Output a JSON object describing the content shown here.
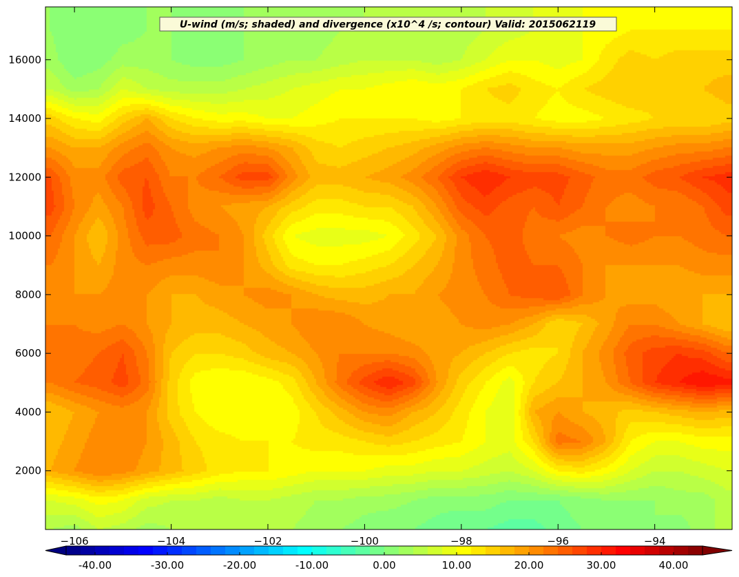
{
  "chart_data": {
    "type": "heatmap",
    "subtype": "filled-contour",
    "title": "U-wind (m/s; shaded) and divergence (x10^4 /s; contour) Valid: 2015062119",
    "xlabel": "",
    "ylabel": "",
    "xlim": [
      -106.6,
      -92.4
    ],
    "ylim": [
      0,
      17800
    ],
    "x_ticks": [
      -106,
      -104,
      -102,
      -100,
      -98,
      -96,
      -94
    ],
    "y_ticks": [
      2000,
      4000,
      6000,
      8000,
      10000,
      12000,
      14000,
      16000
    ],
    "x_tick_labels": [
      "−106",
      "−104",
      "−102",
      "−100",
      "−98",
      "−96",
      "−94"
    ],
    "y_tick_labels": [
      "2000",
      "4000",
      "6000",
      "8000",
      "10000",
      "12000",
      "14000",
      "16000"
    ],
    "grid": false,
    "colorbar": {
      "orientation": "horizontal",
      "position": "bottom",
      "min": -44,
      "max": 44,
      "step": 2,
      "extend": "both",
      "colormap": "jet",
      "ticks": [
        -40,
        -30,
        -20,
        -10,
        0,
        10,
        20,
        30,
        40
      ],
      "tick_labels": [
        "-40.00",
        "-30.00",
        "-20.00",
        "-10.00",
        "0.00",
        "10.00",
        "20.00",
        "30.00",
        "40.00"
      ]
    },
    "x": [
      -106.5,
      -106,
      -105.5,
      -105,
      -104.5,
      -104,
      -103.5,
      -103,
      -102.5,
      -102,
      -101.5,
      -101,
      -100.5,
      -100,
      -99.5,
      -99,
      -98.5,
      -98,
      -97.5,
      -97,
      -96.5,
      -96,
      -95.5,
      -95,
      -94.5,
      -94,
      -93.5,
      -93,
      -92.5
    ],
    "y": [
      0,
      1000,
      2000,
      3000,
      4000,
      5000,
      6000,
      7000,
      8000,
      9000,
      10000,
      11000,
      12000,
      13000,
      14000,
      15000,
      16000,
      17000,
      17800
    ],
    "values": [
      [
        4,
        3,
        6,
        5,
        3,
        4,
        4,
        5,
        6,
        5,
        4,
        3,
        2,
        1,
        0,
        0,
        -1,
        -2,
        -2,
        -3,
        -3,
        -1,
        0,
        1,
        1,
        2,
        1,
        3,
        5
      ],
      [
        8,
        9,
        11,
        10,
        7,
        6,
        6,
        5,
        6,
        6,
        5,
        4,
        4,
        3,
        3,
        2,
        1,
        1,
        1,
        0,
        0,
        0,
        1,
        2,
        2,
        2,
        3,
        3,
        5
      ],
      [
        18,
        20,
        22,
        21,
        19,
        17,
        15,
        13,
        12,
        12,
        11,
        10,
        10,
        10,
        9,
        9,
        8,
        8,
        7,
        6,
        8,
        12,
        13,
        11,
        8,
        6,
        6,
        7,
        8
      ],
      [
        17,
        19,
        21,
        22,
        20,
        17,
        14,
        13,
        12,
        12,
        12,
        13,
        13,
        14,
        15,
        14,
        13,
        12,
        10,
        9,
        14,
        23,
        22,
        18,
        12,
        10,
        10,
        11,
        11
      ],
      [
        16,
        18,
        20,
        21,
        20,
        15,
        12,
        10,
        10,
        10,
        11,
        14,
        17,
        20,
        21,
        18,
        16,
        13,
        10,
        8,
        18,
        20,
        18,
        17,
        15,
        16,
        17,
        18,
        17
      ],
      [
        22,
        24,
        25,
        27,
        23,
        15,
        11,
        10,
        10,
        11,
        13,
        18,
        23,
        27,
        30,
        27,
        20,
        15,
        12,
        9,
        14,
        16,
        18,
        20,
        24,
        28,
        30,
        32,
        31
      ],
      [
        24,
        23,
        24,
        26,
        22,
        16,
        14,
        14,
        15,
        17,
        18,
        20,
        22,
        22,
        22,
        21,
        19,
        18,
        16,
        14,
        13,
        14,
        18,
        21,
        25,
        27,
        28,
        27,
        24
      ],
      [
        22,
        22,
        21,
        22,
        20,
        18,
        17,
        17,
        18,
        19,
        20,
        22,
        22,
        20,
        19,
        18,
        19,
        20,
        21,
        20,
        18,
        14,
        16,
        19,
        22,
        22,
        20,
        18,
        16
      ],
      [
        20,
        20,
        20,
        21,
        20,
        18,
        18,
        19,
        20,
        21,
        20,
        18,
        17,
        17,
        18,
        18,
        20,
        21,
        22,
        24,
        25,
        26,
        22,
        20,
        19,
        19,
        18,
        18,
        18
      ],
      [
        22,
        20,
        18,
        21,
        22,
        21,
        21,
        22,
        20,
        17,
        13,
        12,
        12,
        13,
        14,
        16,
        18,
        21,
        23,
        25,
        24,
        24,
        22,
        20,
        20,
        20,
        20,
        21,
        21
      ],
      [
        24,
        20,
        16,
        21,
        25,
        25,
        23,
        22,
        20,
        15,
        10,
        9,
        9,
        9,
        10,
        13,
        16,
        21,
        24,
        25,
        23,
        22,
        21,
        22,
        23,
        22,
        22,
        23,
        24
      ],
      [
        27,
        22,
        19,
        22,
        27,
        24,
        21,
        20,
        19,
        18,
        15,
        13,
        13,
        14,
        14,
        16,
        20,
        25,
        27,
        25,
        24,
        26,
        24,
        22,
        21,
        22,
        22,
        24,
        27
      ],
      [
        26,
        21,
        21,
        25,
        26,
        22,
        22,
        24,
        27,
        27,
        21,
        17,
        17,
        18,
        19,
        21,
        24,
        28,
        30,
        28,
        27,
        27,
        25,
        23,
        23,
        25,
        26,
        28,
        29
      ],
      [
        20,
        18,
        18,
        21,
        23,
        20,
        19,
        20,
        21,
        20,
        18,
        15,
        14,
        15,
        16,
        17,
        19,
        21,
        22,
        21,
        20,
        20,
        19,
        19,
        19,
        20,
        21,
        21,
        22
      ],
      [
        15,
        12,
        11,
        15,
        18,
        14,
        12,
        11,
        11,
        10,
        10,
        11,
        12,
        12,
        12,
        12,
        11,
        12,
        13,
        13,
        12,
        11,
        11,
        12,
        13,
        14,
        14,
        14,
        15
      ],
      [
        6,
        3,
        4,
        8,
        6,
        5,
        5,
        5,
        6,
        7,
        8,
        9,
        10,
        10,
        11,
        12,
        11,
        12,
        14,
        15,
        13,
        12,
        14,
        15,
        16,
        15,
        15,
        16,
        17
      ],
      [
        3,
        0,
        1,
        3,
        3,
        2,
        1,
        1,
        2,
        3,
        4,
        4,
        5,
        6,
        6,
        6,
        5,
        6,
        8,
        10,
        10,
        9,
        10,
        13,
        15,
        14,
        15,
        15,
        15
      ],
      [
        2,
        0,
        0,
        1,
        2,
        2,
        1,
        1,
        2,
        2,
        3,
        3,
        4,
        4,
        4,
        4,
        4,
        5,
        6,
        7,
        8,
        9,
        10,
        11,
        12,
        12,
        12,
        12,
        12
      ],
      [
        2,
        1,
        1,
        1,
        2,
        2,
        1,
        1,
        2,
        2,
        3,
        3,
        3,
        4,
        4,
        4,
        4,
        5,
        6,
        7,
        8,
        9,
        10,
        10,
        11,
        11,
        11,
        11,
        11
      ]
    ]
  }
}
